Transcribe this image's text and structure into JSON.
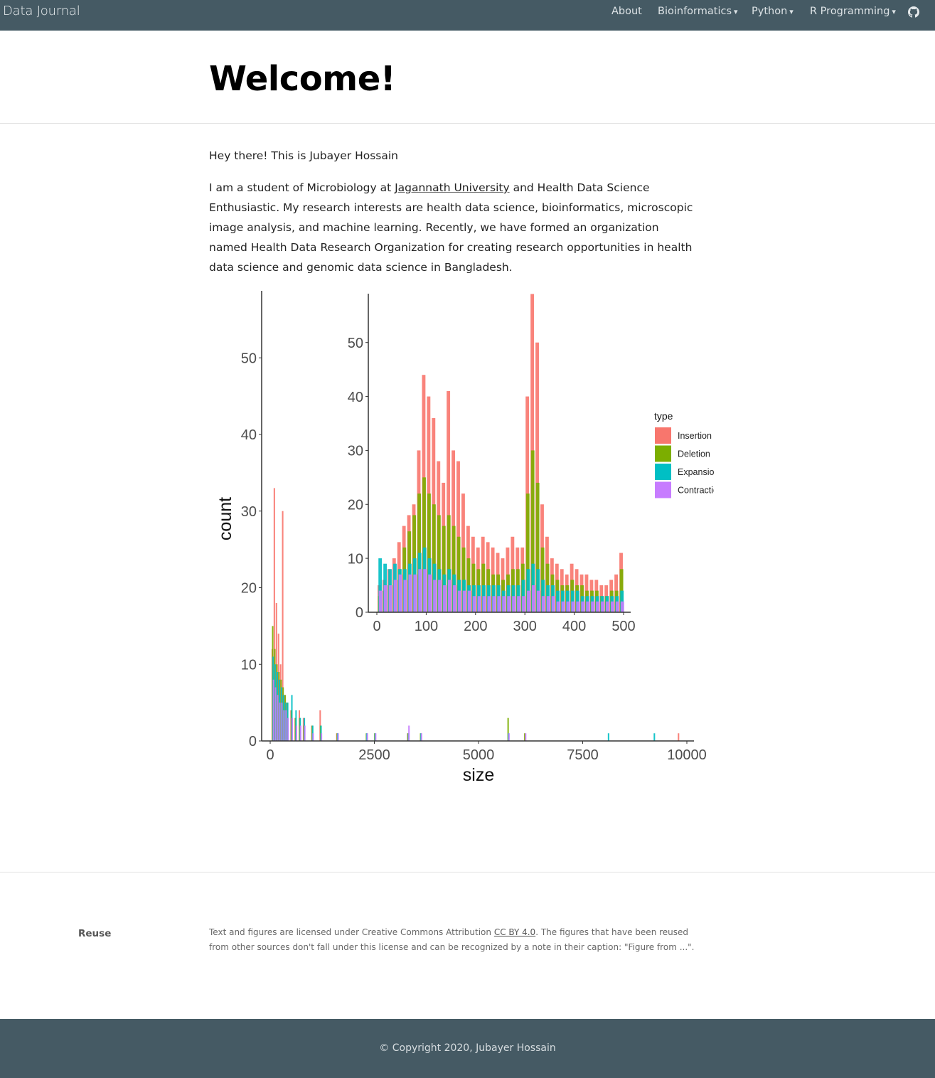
{
  "navbar": {
    "brand": "Data Journal",
    "items": [
      {
        "label": "About",
        "caret": ""
      },
      {
        "label": "Bioinformatics",
        "caret": "▾"
      },
      {
        "label": "Python",
        "caret": "▾"
      },
      {
        "label": "R Programming",
        "caret": "▾"
      }
    ],
    "github_icon": "github-icon",
    "bg_color": "#455a64"
  },
  "page": {
    "title": "Welcome!",
    "intro": "Hey there! This is Jubayer Hossain",
    "para_before_link": "I am a student of Microbiology at ",
    "link_text": "Jagannath University",
    "para_after_link": " and Health Data Science Enthusiastic. My research interests are health data science, bioinformatics, microscopic image analysis, and machine learning. Recently, we have formed an organization named Health Data Research Organization for creating research opportunities in health data science and genomic data science in Bangladesh."
  },
  "chart_data": [
    {
      "type": "bar",
      "xlabel": "size",
      "ylabel": "count",
      "xlim": [
        0,
        10000
      ],
      "ylim": [
        0,
        58
      ],
      "x_ticks": [
        "0",
        "2500",
        "5000",
        "7500",
        "10000"
      ],
      "y_ticks": [
        "0",
        "10",
        "20",
        "30",
        "40",
        "50"
      ],
      "grid": false,
      "x": [
        50,
        100,
        150,
        200,
        250,
        300,
        350,
        400,
        500,
        600,
        700,
        800,
        1000,
        1200,
        1600,
        2300,
        2500,
        3300,
        3600,
        5700,
        6100,
        8100,
        9200,
        9800
      ],
      "series": [
        {
          "name": "Insertion",
          "color": "#f8766d",
          "values": [
            12,
            33,
            18,
            14,
            10,
            30,
            6,
            5,
            4,
            3,
            4,
            3,
            2,
            4,
            1,
            0,
            0,
            1,
            0,
            0,
            0,
            0,
            0,
            1
          ]
        },
        {
          "name": "Deletion",
          "color": "#7cae00",
          "values": [
            15,
            12,
            10,
            9,
            8,
            7,
            6,
            5,
            4,
            3,
            3,
            2,
            2,
            2,
            1,
            1,
            1,
            1,
            1,
            3,
            1,
            0,
            0,
            0
          ]
        },
        {
          "name": "Expansion",
          "color": "#00bfc4",
          "values": [
            11,
            10,
            9,
            8,
            7,
            6,
            5,
            5,
            6,
            4,
            3,
            3,
            2,
            2,
            1,
            1,
            1,
            1,
            1,
            1,
            0,
            1,
            1,
            0
          ]
        },
        {
          "name": "Contraction",
          "color": "#c77cff",
          "values": [
            8,
            7,
            6,
            5,
            5,
            4,
            4,
            3,
            3,
            2,
            2,
            2,
            1,
            1,
            1,
            1,
            1,
            2,
            1,
            1,
            1,
            0,
            0,
            0
          ]
        }
      ]
    },
    {
      "type": "bar",
      "legend_title": "type",
      "legend": [
        "Insertion",
        "Deletion",
        "Expansion",
        "Contraction"
      ],
      "legend_position": "right",
      "xlim": [
        0,
        500
      ],
      "ylim": [
        0,
        58
      ],
      "x_ticks": [
        "0",
        "100",
        "200",
        "300",
        "400",
        "500"
      ],
      "y_ticks": [
        "0",
        "10",
        "20",
        "30",
        "40",
        "50"
      ],
      "grid": false,
      "x": [
        5,
        15,
        25,
        35,
        45,
        55,
        65,
        75,
        85,
        95,
        105,
        115,
        125,
        135,
        145,
        155,
        165,
        175,
        185,
        195,
        205,
        215,
        225,
        235,
        245,
        255,
        265,
        275,
        285,
        295,
        305,
        315,
        325,
        335,
        345,
        355,
        365,
        375,
        385,
        395,
        405,
        415,
        425,
        435,
        445,
        455,
        465,
        475,
        485,
        495
      ],
      "series": [
        {
          "name": "Insertion",
          "color": "#f8766d",
          "values": [
            5,
            6,
            8,
            10,
            13,
            16,
            18,
            20,
            30,
            44,
            40,
            36,
            28,
            24,
            41,
            30,
            28,
            22,
            16,
            14,
            12,
            14,
            13,
            12,
            11,
            10,
            12,
            14,
            12,
            12,
            40,
            59,
            50,
            20,
            14,
            10,
            9,
            8,
            7,
            9,
            8,
            7,
            7,
            6,
            6,
            5,
            5,
            6,
            7,
            11
          ]
        },
        {
          "name": "Deletion",
          "color": "#7cae00",
          "values": [
            3,
            4,
            5,
            6,
            8,
            12,
            15,
            18,
            22,
            25,
            22,
            20,
            18,
            16,
            18,
            16,
            14,
            12,
            10,
            9,
            8,
            9,
            8,
            7,
            7,
            6,
            7,
            8,
            8,
            9,
            22,
            30,
            24,
            12,
            9,
            7,
            6,
            5,
            5,
            6,
            5,
            5,
            4,
            4,
            4,
            3,
            3,
            4,
            4,
            8
          ]
        },
        {
          "name": "Expansion",
          "color": "#00bfc4",
          "values": [
            10,
            9,
            8,
            9,
            8,
            8,
            9,
            10,
            11,
            12,
            10,
            9,
            8,
            7,
            8,
            7,
            6,
            6,
            5,
            5,
            5,
            5,
            5,
            5,
            5,
            4,
            5,
            5,
            5,
            6,
            8,
            9,
            8,
            6,
            5,
            5,
            4,
            4,
            4,
            4,
            4,
            3,
            3,
            3,
            3,
            3,
            3,
            3,
            3,
            4
          ]
        },
        {
          "name": "Contraction",
          "color": "#c77cff",
          "values": [
            4,
            5,
            5,
            6,
            7,
            6,
            7,
            7,
            8,
            8,
            7,
            6,
            6,
            5,
            6,
            5,
            4,
            4,
            4,
            3,
            3,
            3,
            3,
            3,
            3,
            3,
            3,
            3,
            3,
            3,
            4,
            5,
            4,
            3,
            3,
            3,
            2,
            2,
            2,
            2,
            2,
            2,
            2,
            2,
            2,
            2,
            2,
            2,
            2,
            2
          ]
        }
      ]
    }
  ],
  "legend_labels": [
    "Insertion",
    "Deletion",
    "Expansion",
    "Contraction"
  ],
  "reuse": {
    "label": "Reuse",
    "text_before_link": "Text and figures are licensed under Creative Commons Attribution ",
    "link_text": "CC BY 4.0",
    "text_after_link": ". The figures that have been reused from other sources don't fall under this license and can be recognized by a note in their caption: \"Figure from ...\"."
  },
  "footer": {
    "copyright": "© Copyright 2020, Jubayer Hossain"
  }
}
